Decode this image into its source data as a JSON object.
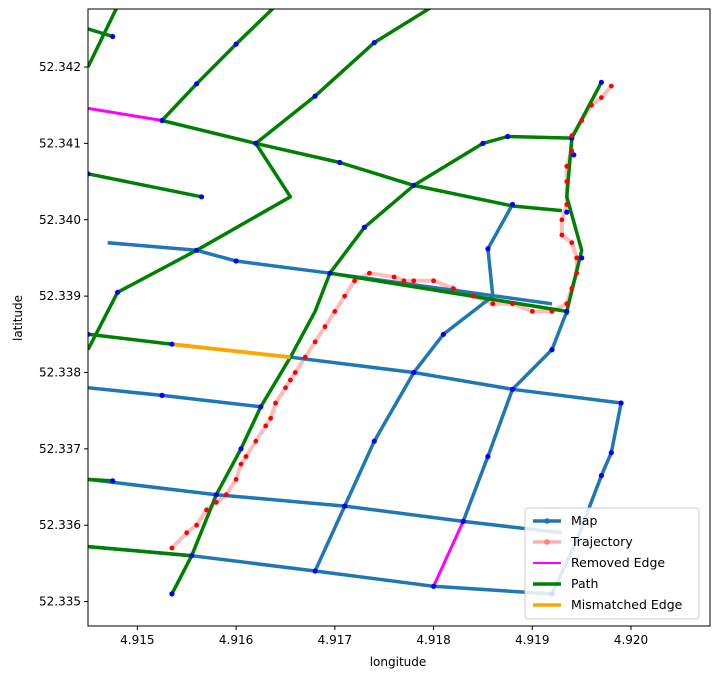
{
  "chart_data": {
    "type": "line",
    "title": "",
    "xlabel": "longitude",
    "ylabel": "latitude",
    "xlim": [
      4.9145,
      4.9208
    ],
    "ylim": [
      52.33468,
      52.34276
    ],
    "x_ticks": [
      "4.915",
      "4.916",
      "4.917",
      "4.918",
      "4.919",
      "4.920"
    ],
    "y_ticks": [
      "52.335",
      "52.336",
      "52.337",
      "52.338",
      "52.339",
      "52.340",
      "52.341",
      "52.342"
    ],
    "grid": false,
    "legend_position": "lower-right",
    "legend": [
      "Map",
      "Trajectory",
      "Removed Edge",
      "Path",
      "Mismatched Edge"
    ],
    "colors": {
      "map": "#1f77b4",
      "node": "#0000ff",
      "trajectory_line": "#ffb0b0",
      "trajectory_point": "#ff0000",
      "removed_edge": "#ff00ff",
      "path": "#008000",
      "mismatched_edge": "#ffa500"
    },
    "map_edges": [
      [
        [
          4.9147,
          52.3397
        ],
        [
          4.9156,
          52.3396
        ],
        [
          4.916,
          52.33946
        ],
        [
          4.91695,
          52.3393
        ]
      ],
      [
        [
          4.91695,
          52.3393
        ],
        [
          4.9192,
          52.3389
        ]
      ],
      [
        [
          4.91655,
          52.3382
        ],
        [
          4.9178,
          52.338
        ],
        [
          4.9188,
          52.33778
        ],
        [
          4.9199,
          52.3376
        ]
      ],
      [
        [
          4.9145,
          52.3378
        ],
        [
          4.91525,
          52.3377
        ],
        [
          4.91625,
          52.33755
        ]
      ],
      [
        [
          4.9145,
          52.3366
        ],
        [
          4.9158,
          52.3364
        ],
        [
          4.9171,
          52.33625
        ],
        [
          4.9183,
          52.33605
        ],
        [
          4.9193,
          52.3359
        ]
      ],
      [
        [
          4.9145,
          52.33572
        ],
        [
          4.91555,
          52.3356
        ],
        [
          4.9168,
          52.3354
        ],
        [
          4.918,
          52.3352
        ],
        [
          4.9192,
          52.3351
        ]
      ],
      [
        [
          4.9168,
          52.3354
        ],
        [
          4.9171,
          52.33625
        ],
        [
          4.9174,
          52.3371
        ],
        [
          4.9178,
          52.338
        ],
        [
          4.9181,
          52.3385
        ],
        [
          4.9186,
          52.339
        ],
        [
          4.91855,
          52.33962
        ],
        [
          4.9188,
          52.3402
        ]
      ],
      [
        [
          4.9183,
          52.33605
        ],
        [
          4.91855,
          52.3369
        ],
        [
          4.9188,
          52.33778
        ],
        [
          4.9192,
          52.3383
        ],
        [
          4.91935,
          52.3388
        ]
      ],
      [
        [
          4.9192,
          52.3351
        ],
        [
          4.91945,
          52.3358
        ],
        [
          4.9197,
          52.33665
        ],
        [
          4.9198,
          52.33695
        ],
        [
          4.9199,
          52.3376
        ]
      ]
    ],
    "path_edges": [
      [
        [
          4.91535,
          52.3351
        ],
        [
          4.91555,
          52.3356
        ],
        [
          4.9158,
          52.3364
        ],
        [
          4.91605,
          52.337
        ],
        [
          4.91625,
          52.33755
        ],
        [
          4.91655,
          52.3382
        ],
        [
          4.9168,
          52.3388
        ],
        [
          4.91695,
          52.3393
        ],
        [
          4.9173,
          52.3399
        ],
        [
          4.9178,
          52.34045
        ],
        [
          4.9185,
          52.341
        ],
        [
          4.91875,
          52.34109
        ],
        [
          4.9194,
          52.34107
        ]
      ],
      [
        [
          4.91695,
          52.3393
        ],
        [
          4.91935,
          52.3388
        ]
      ],
      [
        [
          4.9145,
          52.3425
        ],
        [
          4.91475,
          52.3424
        ]
      ],
      [
        [
          4.9145,
          52.342
        ],
        [
          4.9148,
          52.3428
        ]
      ],
      [
        [
          4.91525,
          52.3413
        ],
        [
          4.9156,
          52.34178
        ],
        [
          4.916,
          52.3423
        ],
        [
          4.9164,
          52.3428
        ]
      ],
      [
        [
          4.91525,
          52.3413
        ],
        [
          4.9162,
          52.341
        ],
        [
          4.91705,
          52.34075
        ],
        [
          4.9178,
          52.34045
        ],
        [
          4.9188,
          52.34018
        ],
        [
          4.9193,
          52.34012
        ]
      ],
      [
        [
          4.9145,
          52.3383
        ],
        [
          4.9148,
          52.33905
        ],
        [
          4.9156,
          52.3396
        ],
        [
          4.91655,
          52.3403
        ],
        [
          4.9162,
          52.341
        ],
        [
          4.9168,
          52.34162
        ],
        [
          4.9174,
          52.34232
        ],
        [
          4.918,
          52.3428
        ]
      ],
      [
        [
          4.9145,
          52.3406
        ],
        [
          4.91565,
          52.3403
        ]
      ],
      [
        [
          4.9145,
          52.3385
        ],
        [
          4.91535,
          52.33837
        ]
      ],
      [
        [
          4.9145,
          52.3366
        ],
        [
          4.91475,
          52.33658
        ]
      ],
      [
        [
          4.9145,
          52.33572
        ],
        [
          4.91555,
          52.3356
        ]
      ],
      [
        [
          4.9194,
          52.34107
        ],
        [
          4.91935,
          52.3403
        ],
        [
          4.9195,
          52.3396
        ],
        [
          4.91935,
          52.3388
        ],
        [
          4.91935,
          52.33875
        ]
      ],
      [
        [
          4.9194,
          52.34107
        ],
        [
          4.9197,
          52.3418
        ]
      ]
    ],
    "removed_edges": [
      [
        [
          4.9145,
          52.34146
        ],
        [
          4.91525,
          52.3413
        ]
      ],
      [
        [
          4.918,
          52.3352
        ],
        [
          4.9183,
          52.33605
        ]
      ]
    ],
    "mismatched_edges": [
      [
        [
          4.91535,
          52.33837
        ],
        [
          4.91655,
          52.3382
        ]
      ]
    ],
    "map_nodes": [
      [
        4.91475,
        52.3424
      ],
      [
        4.916,
        52.3423
      ],
      [
        4.9156,
        52.34178
      ],
      [
        4.9174,
        52.34232
      ],
      [
        4.91525,
        52.3413
      ],
      [
        4.9168,
        52.34162
      ],
      [
        4.9162,
        52.341
      ],
      [
        4.9145,
        52.3406
      ],
      [
        4.91565,
        52.3403
      ],
      [
        4.91705,
        52.34075
      ],
      [
        4.9178,
        52.34045
      ],
      [
        4.9185,
        52.341
      ],
      [
        4.91875,
        52.34109
      ],
      [
        4.9194,
        52.34107
      ],
      [
        4.91942,
        52.34085
      ],
      [
        4.9188,
        52.3402
      ],
      [
        4.91935,
        52.3401
      ],
      [
        4.9173,
        52.3399
      ],
      [
        4.9156,
        52.3396
      ],
      [
        4.916,
        52.33946
      ],
      [
        4.91855,
        52.33962
      ],
      [
        4.9195,
        52.3395
      ],
      [
        4.9148,
        52.33905
      ],
      [
        4.91695,
        52.3393
      ],
      [
        4.9145,
        52.3385
      ],
      [
        4.91535,
        52.33837
      ],
      [
        4.9181,
        52.3385
      ],
      [
        4.91935,
        52.3388
      ],
      [
        4.9192,
        52.3383
      ],
      [
        4.9178,
        52.338
      ],
      [
        4.9188,
        52.33778
      ],
      [
        4.91525,
        52.3377
      ],
      [
        4.91625,
        52.33755
      ],
      [
        4.9199,
        52.3376
      ],
      [
        4.9174,
        52.3371
      ],
      [
        4.91605,
        52.337
      ],
      [
        4.91855,
        52.3369
      ],
      [
        4.9198,
        52.33695
      ],
      [
        4.9197,
        52.33665
      ],
      [
        4.91475,
        52.33658
      ],
      [
        4.9158,
        52.3364
      ],
      [
        4.9171,
        52.33625
      ],
      [
        4.9183,
        52.33605
      ],
      [
        4.91555,
        52.3356
      ],
      [
        4.9168,
        52.3354
      ],
      [
        4.918,
        52.3352
      ],
      [
        4.9192,
        52.3351
      ],
      [
        4.91535,
        52.3351
      ],
      [
        4.91945,
        52.3358
      ],
      [
        4.9197,
        52.3418
      ]
    ],
    "trajectory": [
      [
        4.91535,
        52.3357
      ],
      [
        4.9155,
        52.3359
      ],
      [
        4.9156,
        52.336
      ],
      [
        4.9157,
        52.3362
      ],
      [
        4.9158,
        52.3363
      ],
      [
        4.9159,
        52.3364
      ],
      [
        4.916,
        52.3366
      ],
      [
        4.91605,
        52.3368
      ],
      [
        4.9161,
        52.3369
      ],
      [
        4.9162,
        52.3371
      ],
      [
        4.9163,
        52.3373
      ],
      [
        4.91635,
        52.3374
      ],
      [
        4.9164,
        52.3376
      ],
      [
        4.9165,
        52.3378
      ],
      [
        4.91655,
        52.3379
      ],
      [
        4.9166,
        52.338
      ],
      [
        4.9167,
        52.3382
      ],
      [
        4.9168,
        52.3384
      ],
      [
        4.9169,
        52.3386
      ],
      [
        4.917,
        52.3388
      ],
      [
        4.9171,
        52.339
      ],
      [
        4.9172,
        52.3392
      ],
      [
        4.91735,
        52.3393
      ],
      [
        4.9176,
        52.33925
      ],
      [
        4.9177,
        52.3392
      ],
      [
        4.9178,
        52.3392
      ],
      [
        4.918,
        52.3392
      ],
      [
        4.9182,
        52.3391
      ],
      [
        4.9184,
        52.339
      ],
      [
        4.9186,
        52.3389
      ],
      [
        4.9188,
        52.3389
      ],
      [
        4.919,
        52.3388
      ],
      [
        4.9192,
        52.3388
      ],
      [
        4.91935,
        52.3389
      ],
      [
        4.9194,
        52.3391
      ],
      [
        4.91945,
        52.3393
      ],
      [
        4.91945,
        52.3395
      ],
      [
        4.9194,
        52.3397
      ],
      [
        4.9193,
        52.3398
      ],
      [
        4.9193,
        52.34
      ],
      [
        4.91935,
        52.3402
      ],
      [
        4.91935,
        52.3405
      ],
      [
        4.91935,
        52.3407
      ],
      [
        4.9194,
        52.3409
      ],
      [
        4.9194,
        52.3411
      ],
      [
        4.9195,
        52.3413
      ],
      [
        4.9196,
        52.3415
      ],
      [
        4.9197,
        52.3416
      ],
      [
        4.9198,
        52.34175
      ]
    ]
  }
}
